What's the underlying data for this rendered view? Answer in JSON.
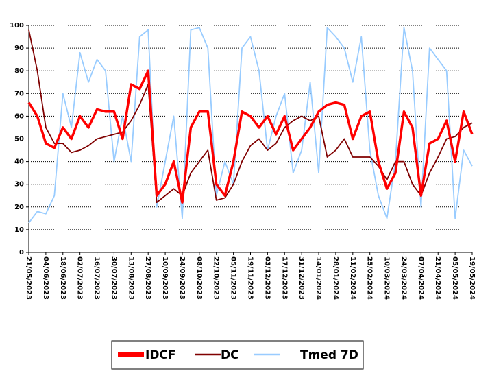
{
  "chart_data": {
    "type": "line",
    "x": [
      "21/05/2023",
      "28/05/2023",
      "04/06/2023",
      "11/06/2023",
      "18/06/2023",
      "25/06/2023",
      "02/07/2023",
      "09/07/2023",
      "16/07/2023",
      "23/07/2023",
      "30/07/2023",
      "06/08/2023",
      "13/08/2023",
      "20/08/2023",
      "27/08/2023",
      "03/09/2023",
      "10/09/2023",
      "17/09/2023",
      "24/09/2023",
      "01/10/2023",
      "08/10/2023",
      "15/10/2023",
      "22/10/2023",
      "29/10/2023",
      "05/11/2023",
      "12/11/2023",
      "19/11/2023",
      "26/11/2023",
      "03/12/2023",
      "10/12/2023",
      "17/12/2023",
      "24/12/2023",
      "31/12/2023",
      "07/01/2024",
      "14/01/2024",
      "21/01/2024",
      "28/01/2024",
      "04/02/2024",
      "11/02/2024",
      "18/02/2024",
      "25/02/2024",
      "03/03/2024",
      "10/03/2024",
      "17/03/2024",
      "24/03/2024",
      "31/03/2024",
      "07/04/2024",
      "14/04/2024",
      "21/04/2024",
      "28/04/2024",
      "05/05/2024",
      "12/05/2024",
      "19/05/2024"
    ],
    "series": [
      {
        "name": "IDCF",
        "color": "#ff0000",
        "values": [
          66,
          60,
          48,
          46,
          55,
          50,
          60,
          55,
          63,
          62,
          62,
          50,
          74,
          72,
          80,
          25,
          30,
          40,
          22,
          55,
          62,
          62,
          30,
          25,
          40,
          62,
          60,
          55,
          60,
          52,
          60,
          45,
          50,
          55,
          62,
          65,
          66,
          65,
          50,
          60,
          62,
          40,
          28,
          35,
          62,
          55,
          25,
          48,
          50,
          58,
          40,
          62,
          52
        ]
      },
      {
        "name": "DC",
        "color": "#800000",
        "values": [
          98,
          80,
          55,
          48,
          48,
          44,
          45,
          47,
          50,
          51,
          52,
          53,
          58,
          65,
          74,
          22,
          25,
          28,
          25,
          35,
          40,
          45,
          23,
          24,
          30,
          40,
          47,
          50,
          45,
          48,
          55,
          58,
          60,
          58,
          60,
          42,
          45,
          50,
          42,
          42,
          42,
          38,
          32,
          40,
          40,
          30,
          25,
          35,
          42,
          50,
          51,
          55,
          57
        ]
      },
      {
        "name": "Tmed 7D",
        "color": "#99ccff",
        "values": [
          13,
          18,
          17,
          25,
          70,
          55,
          88,
          75,
          85,
          80,
          40,
          60,
          40,
          95,
          98,
          20,
          40,
          60,
          15,
          98,
          99,
          90,
          25,
          40,
          30,
          90,
          95,
          80,
          45,
          60,
          70,
          35,
          45,
          75,
          35,
          99,
          95,
          90,
          75,
          95,
          45,
          25,
          15,
          40,
          99,
          80,
          20,
          90,
          85,
          80,
          15,
          45,
          38
        ]
      }
    ],
    "xlim": [
      "21/05/2023",
      "19/05/2024"
    ],
    "xticks": [
      "21/05/2023",
      "04/06/2023",
      "18/06/2023",
      "02/07/2023",
      "16/07/2023",
      "30/07/2023",
      "13/08/2023",
      "27/08/2023",
      "10/09/2023",
      "24/09/2023",
      "08/10/2023",
      "22/10/2023",
      "05/11/2023",
      "19/11/2023",
      "03/12/2023",
      "17/12/2023",
      "31/12/2023",
      "14/01/2024",
      "28/01/2024",
      "11/02/2024",
      "25/02/2024",
      "10/03/2024",
      "24/03/2024",
      "07/04/2024",
      "21/04/2024",
      "05/05/2024",
      "19/05/2024"
    ],
    "ylim": [
      0,
      100
    ],
    "yticks": [
      0,
      10,
      20,
      30,
      40,
      50,
      60,
      70,
      80,
      90,
      100
    ],
    "grid": true
  }
}
